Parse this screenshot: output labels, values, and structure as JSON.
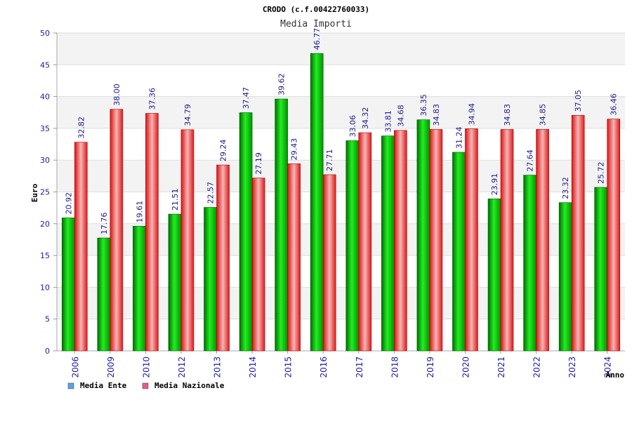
{
  "chart_data": {
    "type": "bar",
    "title": "CRODO (c.f.00422760033)",
    "subtitle": "Media Importi",
    "xlabel": "Anno",
    "ylabel": "Euro",
    "ylim": [
      0,
      50
    ],
    "yticks": [
      0,
      5,
      10,
      15,
      20,
      25,
      30,
      35,
      40,
      45,
      50
    ],
    "grid": true,
    "legend_position": "bottom-left",
    "categories": [
      "2006",
      "2009",
      "2010",
      "2012",
      "2013",
      "2014",
      "2015",
      "2016",
      "2017",
      "2018",
      "2019",
      "2020",
      "2021",
      "2022",
      "2023",
      "2024"
    ],
    "series": [
      {
        "name": "Media Ente",
        "color": "#00bb00",
        "legend_color": "#5aa0e6",
        "values": [
          20.92,
          17.76,
          19.61,
          21.51,
          22.57,
          37.47,
          39.62,
          46.77,
          33.06,
          33.81,
          36.35,
          31.24,
          23.91,
          27.64,
          23.32,
          25.72
        ],
        "labels": [
          "20.92",
          "17.76",
          "19.61",
          "21.51",
          "22.57",
          "37.47",
          "39.62",
          "46.77",
          "33.06",
          "33.81",
          "36.35",
          "31.24",
          "23.91",
          "27.64",
          "23.32",
          "25.72"
        ]
      },
      {
        "name": "Media Nazionale",
        "color": "#ee2222",
        "legend_color": "#e05c8c",
        "values": [
          32.82,
          38.0,
          37.36,
          34.79,
          29.24,
          27.19,
          29.43,
          27.71,
          34.32,
          34.68,
          34.83,
          34.94,
          34.83,
          34.85,
          37.05,
          36.46
        ],
        "labels": [
          "32.82",
          "38.00",
          "37.36",
          "34.79",
          "29.24",
          "27.19",
          "29.43",
          "27.71",
          "34.32",
          "34.68",
          "34.83",
          "34.94",
          "34.83",
          "34.85",
          "37.05",
          "36.46"
        ]
      }
    ]
  }
}
